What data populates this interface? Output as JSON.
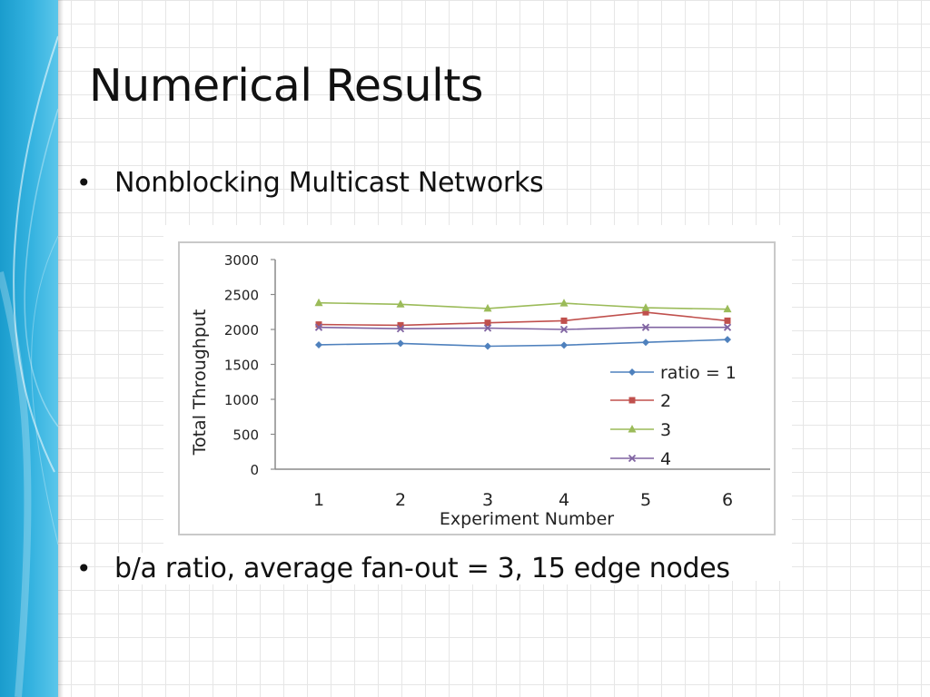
{
  "slide": {
    "title": "Numerical Results",
    "bullets": [
      "Nonblocking Multicast Networks",
      "b/a ratio, average fan-out = 3, 15 edge nodes"
    ],
    "bullet_char": "•"
  },
  "chart_data": {
    "type": "line",
    "title": "",
    "xlabel": "Experiment Number",
    "ylabel": "Total Throughput",
    "categories": [
      "1",
      "2",
      "3",
      "4",
      "5",
      "6"
    ],
    "ylim": [
      0,
      3000
    ],
    "yticks": [
      "0",
      "500",
      "1000",
      "1500",
      "2000",
      "2500",
      "3000"
    ],
    "grid": false,
    "legend_position": "right",
    "series": [
      {
        "name": "ratio = 1",
        "color": "#4f81bd",
        "marker": "diamond",
        "values": [
          1780,
          1800,
          1760,
          1775,
          1815,
          1855
        ]
      },
      {
        "name": "2",
        "color": "#c0504d",
        "marker": "square",
        "values": [
          2070,
          2060,
          2095,
          2125,
          2245,
          2125
        ]
      },
      {
        "name": "3",
        "color": "#9bbb59",
        "marker": "triangle",
        "values": [
          2380,
          2360,
          2300,
          2375,
          2310,
          2290
        ]
      },
      {
        "name": "4",
        "color": "#8064a2",
        "marker": "x",
        "values": [
          2030,
          2010,
          2020,
          2000,
          2030,
          2030
        ]
      }
    ]
  }
}
